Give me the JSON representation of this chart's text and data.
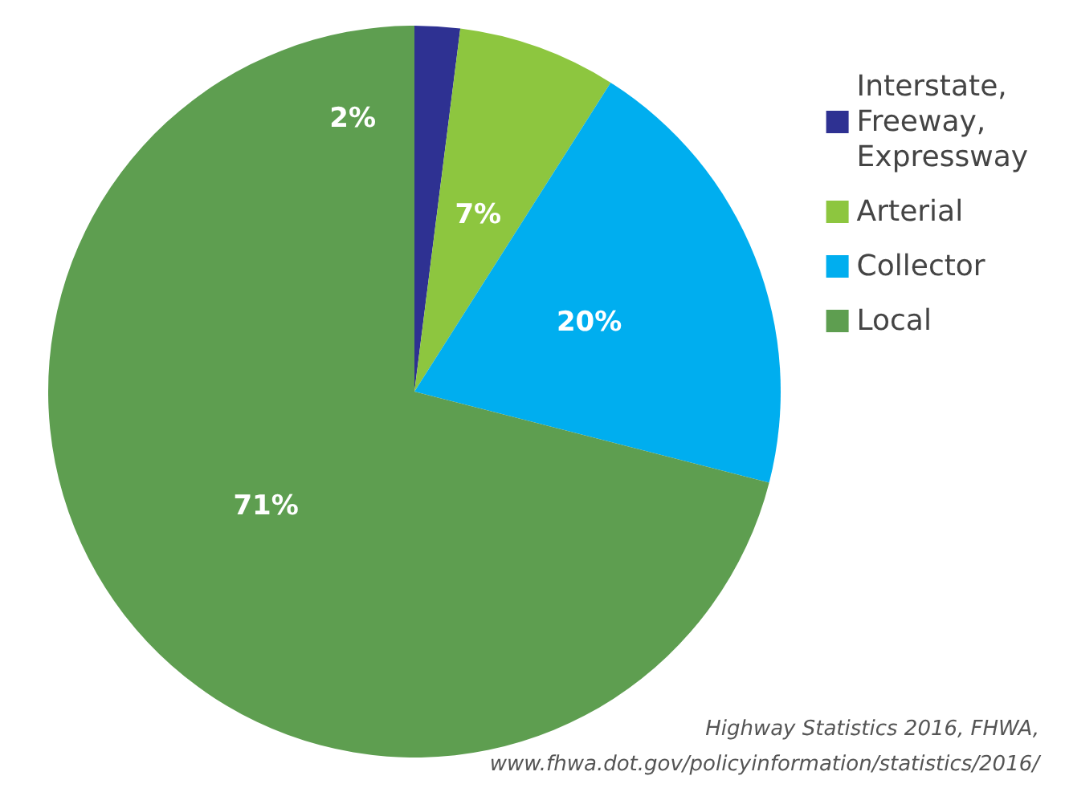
{
  "chart_data": {
    "type": "pie",
    "categories": [
      "Interstate, Freeway, Expressway",
      "Arterial",
      "Collector",
      "Local"
    ],
    "values": [
      2,
      7,
      20,
      71
    ],
    "colors": [
      "#2e3192",
      "#8dc63f",
      "#00aeef",
      "#5e9e50"
    ],
    "value_labels": [
      "2%",
      "7%",
      "20%",
      "71%"
    ],
    "legend": "top right",
    "annotations": [
      "Highway Statistics 2016, FHWA,",
      "www.fhwa.dot.gov/policyinformation/statistics/2016/"
    ]
  }
}
